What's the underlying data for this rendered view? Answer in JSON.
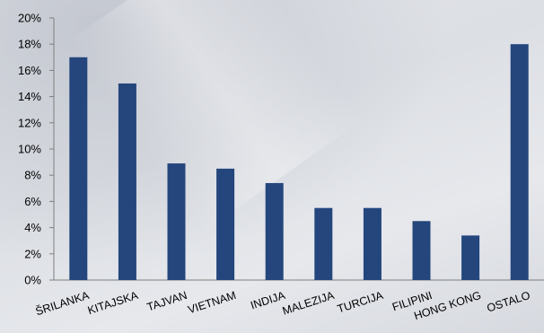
{
  "chart_data": {
    "type": "bar",
    "categories": [
      "ŠRILANKA",
      "KITAJSKA",
      "TAJVAN",
      "VIETNAM",
      "INDIJA",
      "MALEZIJA",
      "TURCIJA",
      "FILIPINI",
      "HONG KONG",
      "OSTALO"
    ],
    "values": [
      17,
      15,
      8.9,
      8.5,
      7.4,
      5.5,
      5.5,
      4.5,
      3.4,
      18
    ],
    "y_ticks": [
      "0%",
      "2%",
      "4%",
      "6%",
      "8%",
      "10%",
      "12%",
      "14%",
      "16%",
      "18%",
      "20%"
    ],
    "ylim": [
      0,
      20
    ],
    "bar_color": "#24467d",
    "grid": false,
    "legend": "none"
  }
}
